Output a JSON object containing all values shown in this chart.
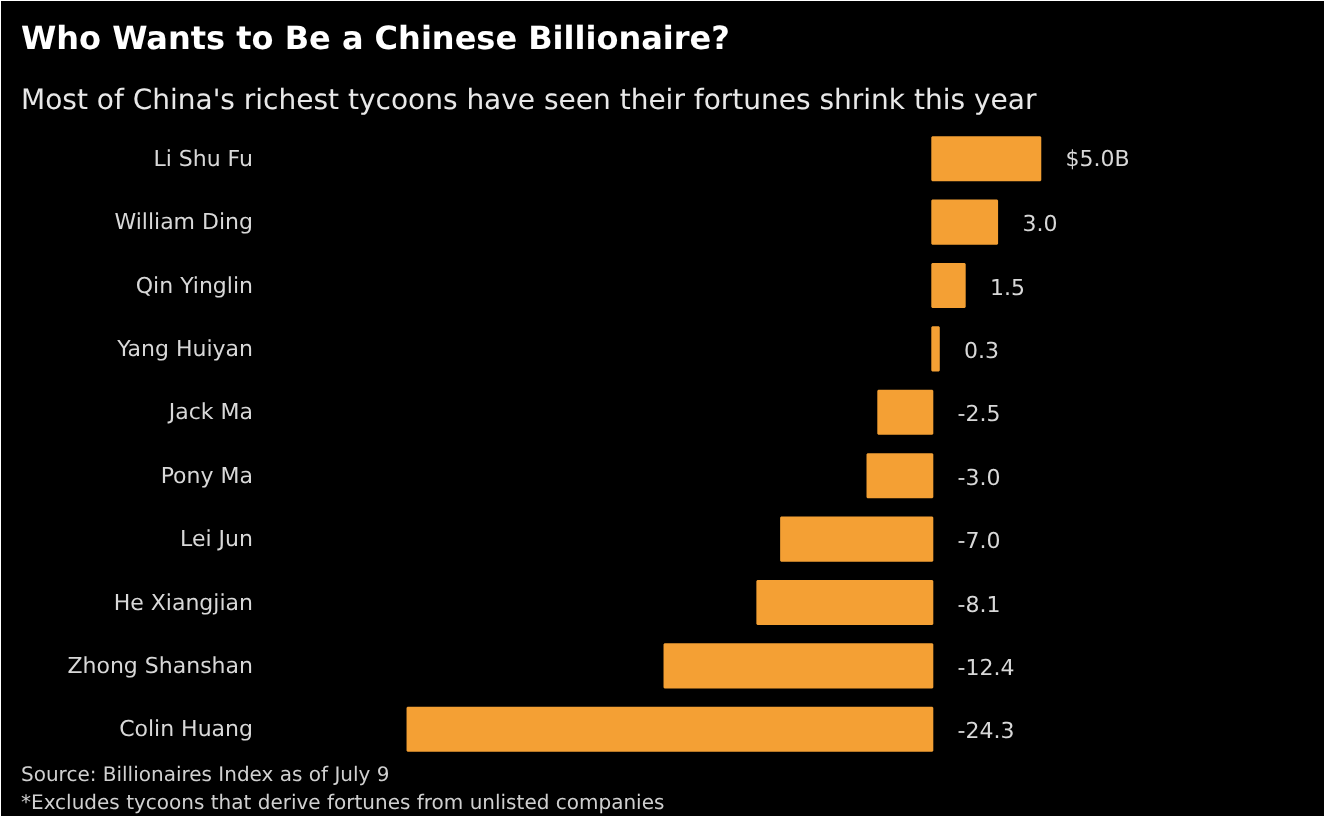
{
  "chart_data": {
    "type": "bar",
    "orientation": "horizontal",
    "title": "Who Wants to Be a Chinese Billionaire?",
    "subtitle": "Most of China's richest tycoons have seen their fortunes shrink this year",
    "categories": [
      "Li Shu Fu",
      "William Ding",
      "Qin Yinglin",
      "Yang Huiyan",
      "Jack Ma",
      "Pony Ma",
      "Lei Jun",
      "He Xiangjian",
      "Zhong Shanshan",
      "Colin Huang"
    ],
    "values": [
      5.0,
      3.0,
      1.5,
      0.3,
      -2.5,
      -3.0,
      -7.0,
      -8.1,
      -12.4,
      -24.3
    ],
    "value_labels": [
      "$5.0B",
      "3.0",
      "1.5",
      "0.3",
      "-2.5",
      "-3.0",
      "-7.0",
      "-8.1",
      "-12.4",
      "-24.3"
    ],
    "color": "#f4a034",
    "annotations": [
      "Source: Billionaires Index as of July 9",
      "*Excludes tycoons that derive fortunes from unlisted companies"
    ],
    "grid": false
  }
}
